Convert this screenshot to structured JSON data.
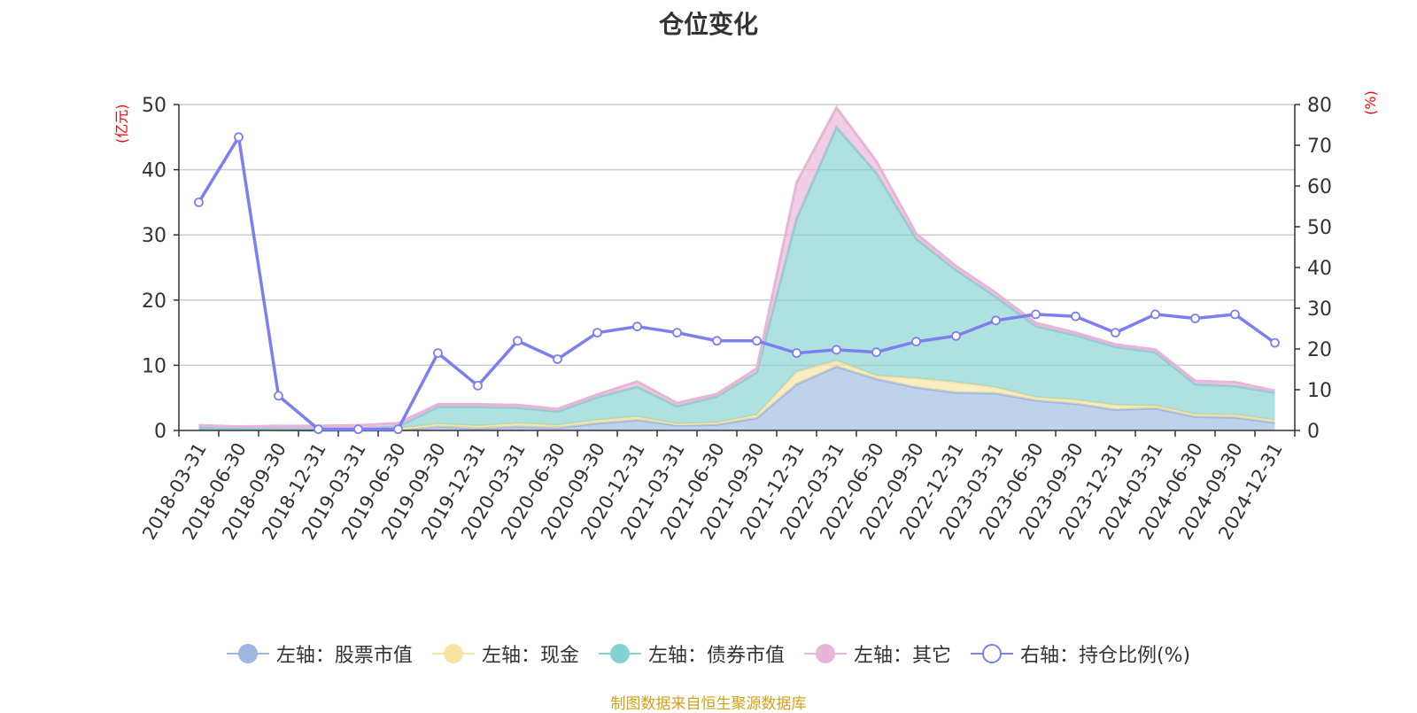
{
  "chart_data": {
    "type": "area",
    "title": "仓位变化",
    "left_unit": "(亿元)",
    "right_unit": "(%)",
    "categories": [
      "2018-03-31",
      "2018-06-30",
      "2018-09-30",
      "2018-12-31",
      "2019-03-31",
      "2019-06-30",
      "2019-09-30",
      "2019-12-31",
      "2020-03-31",
      "2020-06-30",
      "2020-09-30",
      "2020-12-31",
      "2021-03-31",
      "2021-06-30",
      "2021-09-30",
      "2021-12-31",
      "2022-03-31",
      "2022-06-30",
      "2022-09-30",
      "2022-12-31",
      "2023-03-31",
      "2023-06-30",
      "2023-09-30",
      "2023-12-31",
      "2024-03-31",
      "2024-06-30",
      "2024-09-30",
      "2024-12-31"
    ],
    "left_axis": {
      "min": 0,
      "max": 50,
      "ticks": [
        0,
        10,
        20,
        30,
        40,
        50
      ]
    },
    "right_axis": {
      "min": 0,
      "max": 80,
      "ticks": [
        0,
        10,
        20,
        30,
        40,
        50,
        60,
        70,
        80
      ]
    },
    "grid": true,
    "legend_position": "bottom",
    "series": [
      {
        "name": "左轴：股票市值",
        "axis": "left",
        "stacked": true,
        "color": "#9db8e0",
        "values": [
          0.3,
          0.3,
          0.1,
          0.0,
          0.0,
          0.0,
          0.6,
          0.3,
          0.6,
          0.4,
          1.1,
          1.6,
          0.8,
          0.9,
          1.9,
          7.1,
          9.8,
          7.9,
          6.6,
          5.8,
          5.7,
          4.6,
          4.1,
          3.2,
          3.4,
          2.1,
          2.0,
          1.2
        ]
      },
      {
        "name": "左轴：现金",
        "axis": "left",
        "stacked": true,
        "color": "#f7e3a1",
        "values": [
          0.2,
          0.1,
          0.2,
          0.3,
          0.3,
          0.3,
          0.4,
          0.4,
          0.5,
          0.4,
          0.5,
          0.5,
          0.2,
          0.3,
          0.5,
          1.9,
          0.9,
          0.5,
          1.4,
          1.6,
          0.9,
          0.5,
          0.6,
          0.7,
          0.4,
          0.4,
          0.4,
          0.4
        ]
      },
      {
        "name": "左轴：债券市值",
        "axis": "left",
        "stacked": true,
        "color": "#86d1d1",
        "values": [
          0.0,
          0.0,
          0.0,
          0.0,
          0.0,
          0.3,
          2.6,
          2.9,
          2.4,
          2.1,
          3.5,
          4.6,
          2.7,
          4.0,
          6.5,
          23.5,
          35.8,
          31.1,
          21.4,
          17.2,
          13.9,
          10.9,
          9.9,
          8.9,
          8.2,
          4.6,
          4.4,
          4.2
        ]
      },
      {
        "name": "左轴：其它",
        "axis": "left",
        "stacked": true,
        "color": "#e8b4d8",
        "values": [
          0.3,
          0.2,
          0.4,
          0.4,
          0.5,
          0.5,
          0.4,
          0.4,
          0.4,
          0.4,
          0.4,
          0.8,
          0.5,
          0.4,
          0.6,
          5.5,
          3.0,
          1.8,
          0.8,
          0.6,
          0.6,
          0.5,
          0.4,
          0.4,
          0.4,
          0.5,
          0.6,
          0.3
        ]
      },
      {
        "name": "右轴：持仓比例(%)",
        "axis": "right",
        "type": "line",
        "color": "#7b7ff0",
        "values": [
          56,
          72,
          8.5,
          0.3,
          0.3,
          0.3,
          19,
          11,
          22,
          17.5,
          24,
          25.5,
          24,
          22,
          22,
          19,
          19.8,
          19.2,
          21.8,
          23.2,
          27,
          28.5,
          28,
          24,
          28.5,
          27.5,
          28.5,
          21.5
        ]
      }
    ],
    "source_text": "制图数据来自恒生聚源数据库"
  }
}
